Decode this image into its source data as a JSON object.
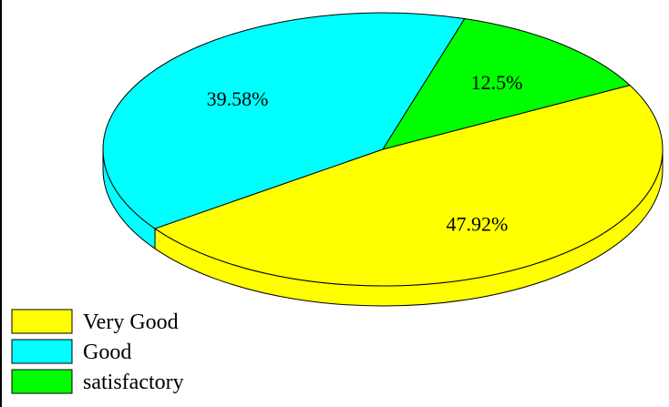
{
  "chart_data": {
    "type": "pie",
    "categories": [
      "Very Good",
      "Good",
      "satisfactory"
    ],
    "values": [
      47.92,
      39.58,
      12.5
    ],
    "data_labels": [
      "47.92%",
      "39.58%",
      "12.5%"
    ],
    "colors": [
      "#ffff00",
      "#00ffff",
      "#00ff00"
    ],
    "style": "3d",
    "legend_position": "bottom-left"
  }
}
